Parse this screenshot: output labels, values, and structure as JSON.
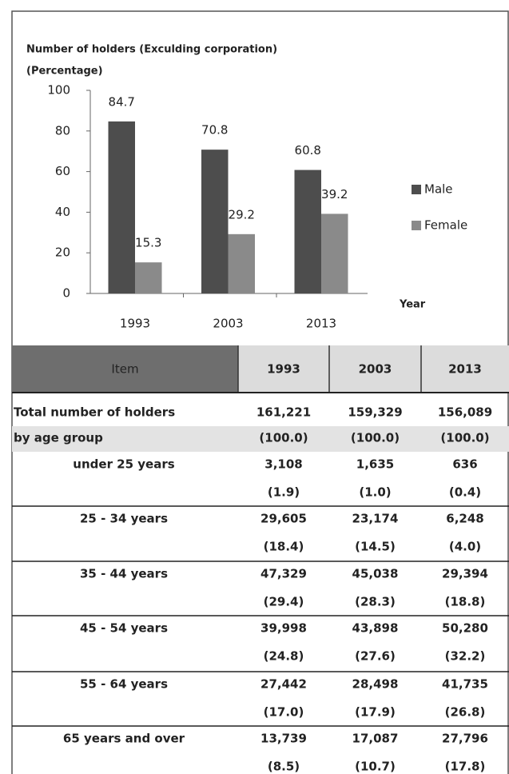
{
  "chart_data": {
    "type": "bar",
    "title": "Number of holders (Exculding corporation)",
    "subtitle": "(Percentage)",
    "x_label": "Year",
    "categories": [
      "1993",
      "2003",
      "2013"
    ],
    "series": [
      {
        "name": "Male",
        "color": "#4d4d4d",
        "values": [
          84.7,
          70.8,
          60.8
        ]
      },
      {
        "name": "Female",
        "color": "#8a8a8a",
        "values": [
          15.3,
          29.2,
          39.2
        ]
      }
    ],
    "ylim": [
      0,
      100
    ],
    "yticks": [
      0,
      20,
      40,
      60,
      80,
      100
    ],
    "legend": "right"
  },
  "table": {
    "header": [
      "Item",
      "1993",
      "2003",
      "2013"
    ],
    "rows": [
      {
        "label": [
          "Total number of holders",
          "by age group"
        ],
        "counts": [
          "161,221",
          "159,329",
          "156,089"
        ],
        "shares": [
          "(100.0)",
          "(100.0)",
          "(100.0)"
        ]
      },
      {
        "label": [
          "under 25 years"
        ],
        "counts": [
          "3,108",
          "1,635",
          "636"
        ],
        "shares": [
          "(1.9)",
          "(1.0)",
          "(0.4)"
        ]
      },
      {
        "label": [
          "25 - 34  years"
        ],
        "counts": [
          "29,605",
          "23,174",
          "6,248"
        ],
        "shares": [
          "(18.4)",
          "(14.5)",
          "(4.0)"
        ]
      },
      {
        "label": [
          "35 - 44  years"
        ],
        "counts": [
          "47,329",
          "45,038",
          "29,394"
        ],
        "shares": [
          "(29.4)",
          "(28.3)",
          "(18.8)"
        ]
      },
      {
        "label": [
          "45 - 54  years"
        ],
        "counts": [
          "39,998",
          "43,898",
          "50,280"
        ],
        "shares": [
          "(24.8)",
          "(27.6)",
          "(32.2)"
        ]
      },
      {
        "label": [
          "55 - 64  years"
        ],
        "counts": [
          "27,442",
          "28,498",
          "41,735"
        ],
        "shares": [
          "(17.0)",
          "(17.9)",
          "(26.8)"
        ]
      },
      {
        "label": [
          "65  years and over"
        ],
        "counts": [
          "13,739",
          "17,087",
          "27,796"
        ],
        "shares": [
          "(8.5)",
          "(10.7)",
          "(17.8)"
        ]
      }
    ]
  }
}
